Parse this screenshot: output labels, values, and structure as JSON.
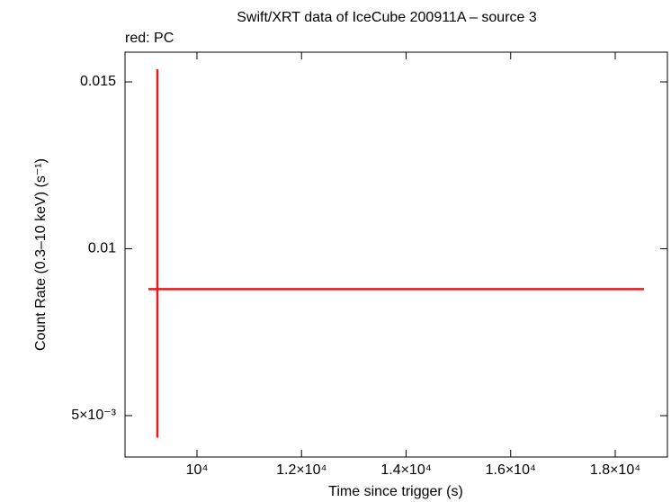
{
  "chart_data": {
    "type": "errorbar",
    "title": "Swift/XRT data of IceCube 200911A – source 3",
    "subtitle": "red: PC",
    "x_label": "Time since trigger (s)",
    "y_label": "Count Rate (0.3–10 keV) (s⁻¹)",
    "series": [
      {
        "name": "PC",
        "color": "#e8191e",
        "x": [
          9243
        ],
        "xerr_minus": [
          172
        ],
        "xerr_plus": [
          9308
        ],
        "values": [
          0.00879
        ],
        "yerr_minus": [
          0.00445
        ],
        "yerr_plus": [
          0.00659
        ]
      }
    ],
    "xlim": [
      8624,
      18998
    ],
    "xticks": [
      {
        "value": 10000,
        "label": "10⁴"
      },
      {
        "value": 12000,
        "label": "1.2×10⁴"
      },
      {
        "value": 14000,
        "label": "1.4×10⁴"
      },
      {
        "value": 16000,
        "label": "1.6×10⁴"
      },
      {
        "value": 18000,
        "label": "1.8×10⁴"
      }
    ],
    "ylim": [
      0.00376,
      0.01589
    ],
    "yticks": [
      {
        "value": 0.005,
        "label": "5×10⁻³"
      },
      0.01,
      0.015
    ]
  }
}
